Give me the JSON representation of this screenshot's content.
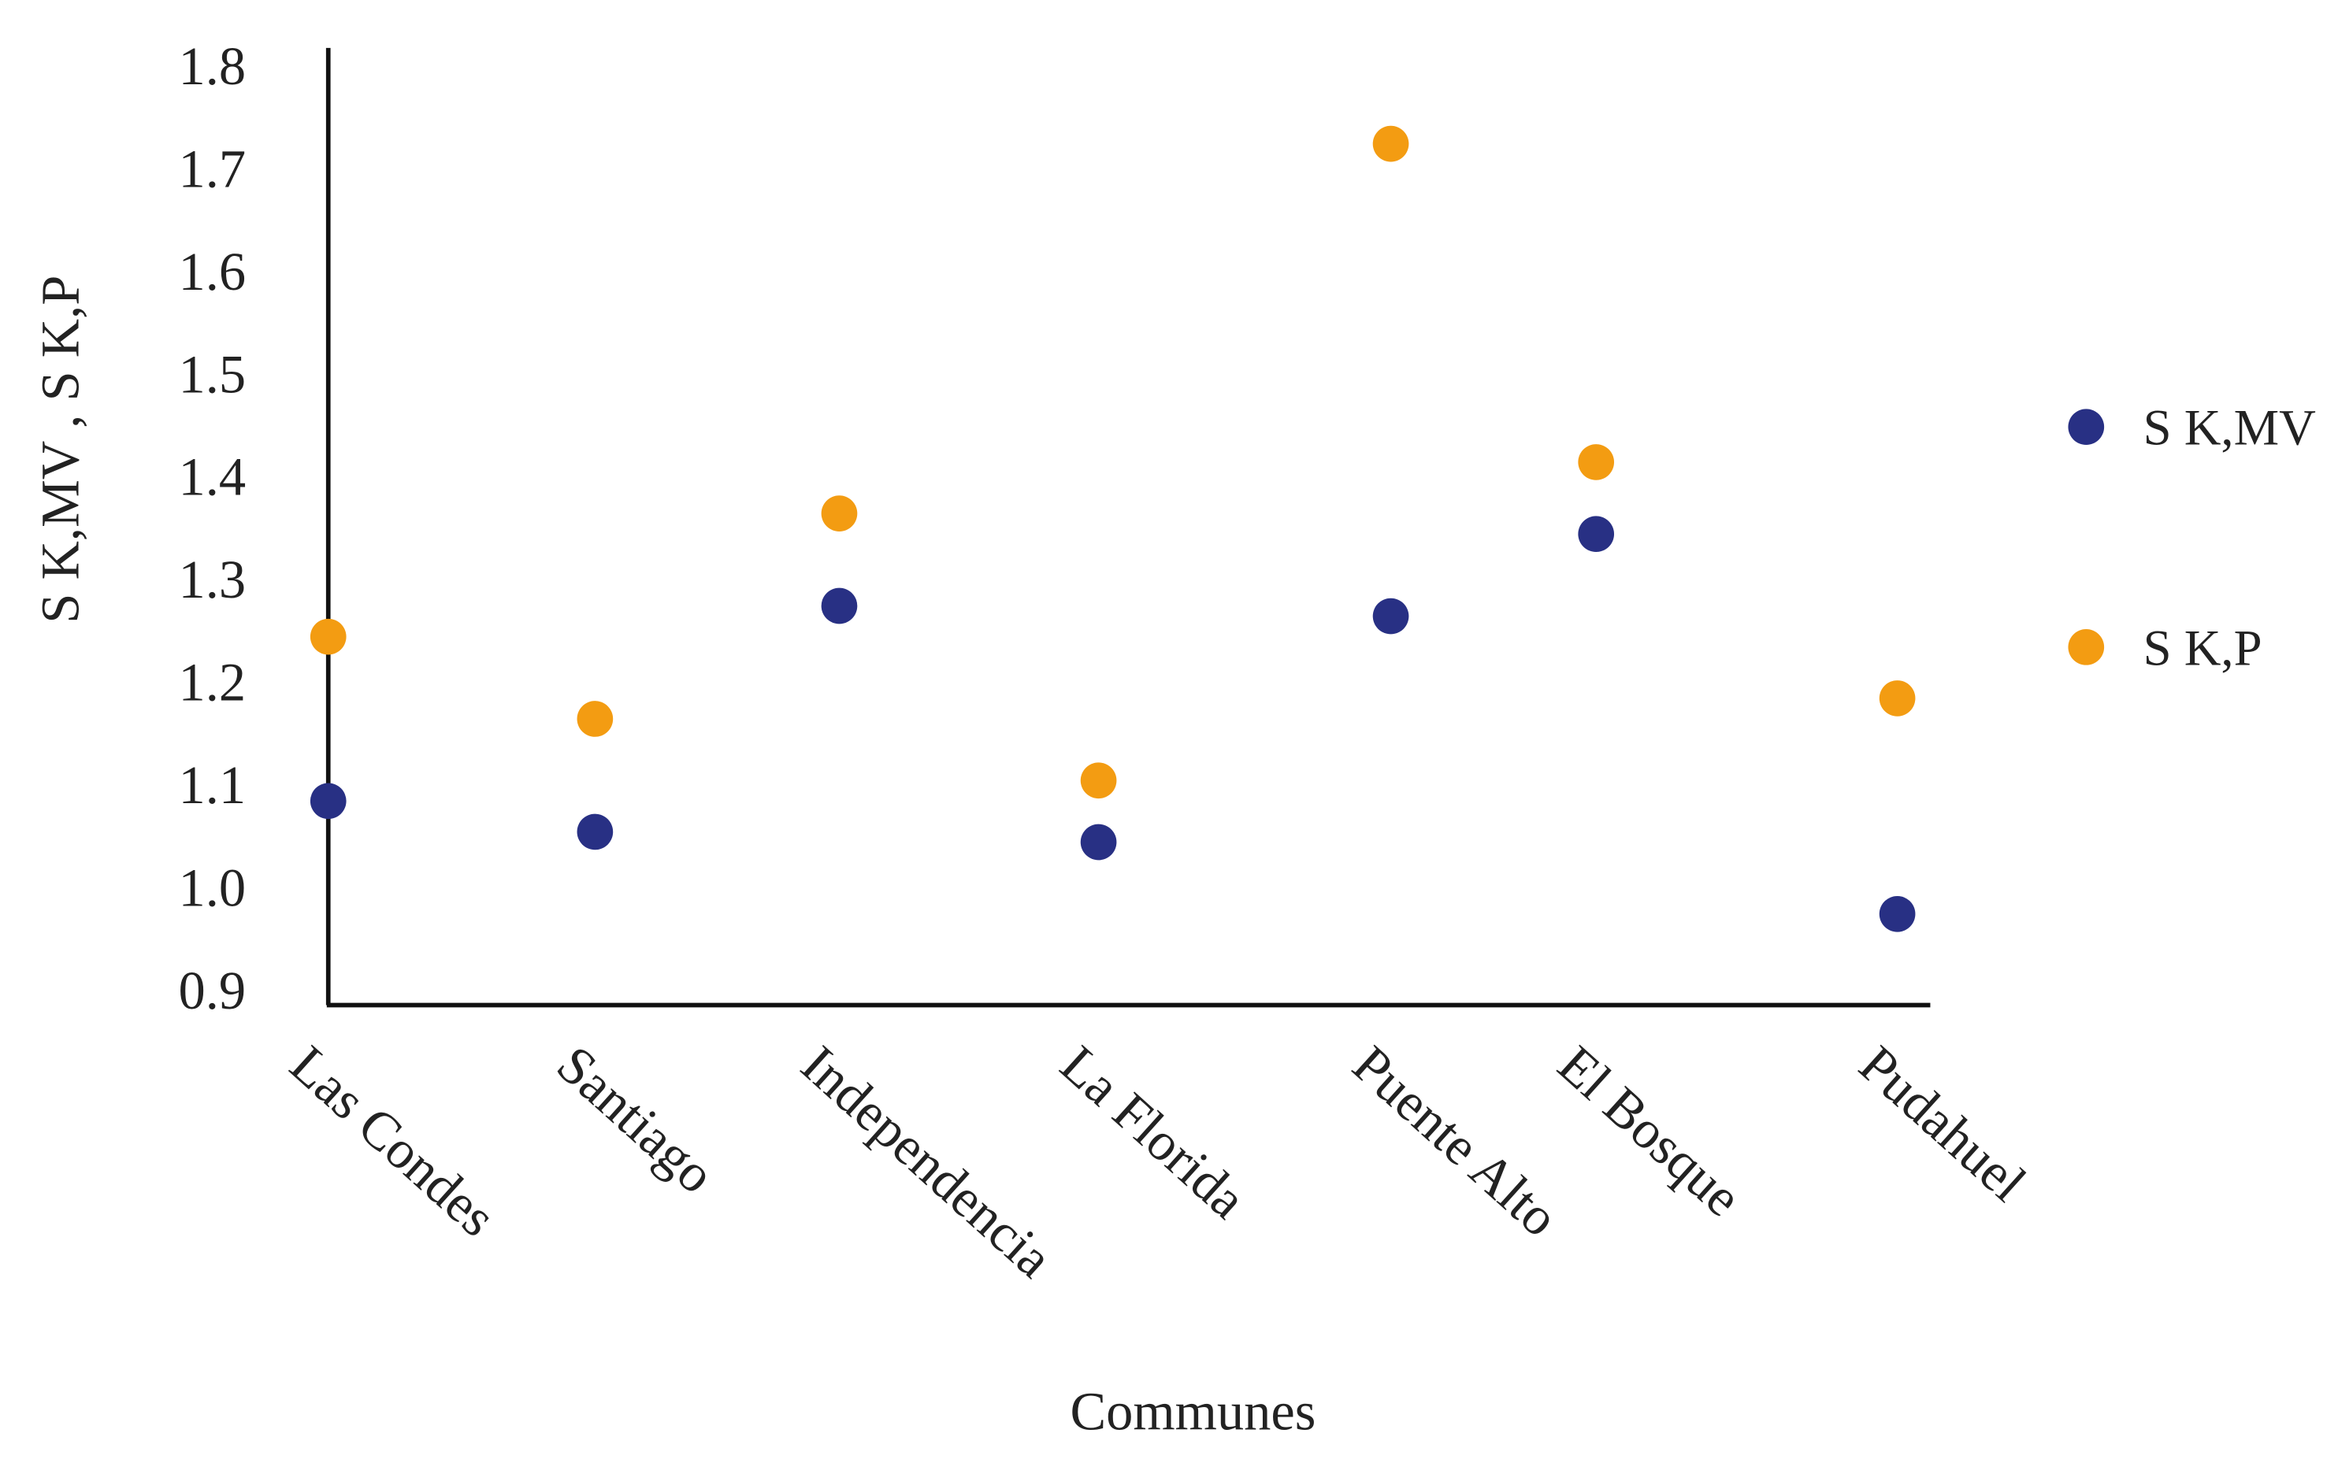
{
  "chart_data": {
    "type": "scatter",
    "x_label": "Communes",
    "y_label": "S K,MV , S K,P",
    "categories": [
      "Las Condes",
      "Santiago",
      "Independencia",
      "La Florida",
      "Puente Alto",
      "El Bosque",
      "Pudahuel"
    ],
    "series": [
      {
        "name": "S K,MV",
        "color": "#283084",
        "values": [
          1.09,
          1.06,
          1.28,
          1.05,
          1.27,
          1.35,
          0.98
        ]
      },
      {
        "name": "S K,P",
        "color": "#f39c12",
        "values": [
          1.25,
          1.17,
          1.37,
          1.11,
          1.73,
          1.42,
          1.19
        ]
      }
    ],
    "ylim": [
      0.9,
      1.8
    ],
    "yticks": [
      0.9,
      {
        "value": 1,
        "label": "1.0"
      },
      1.1,
      1.2,
      1.3,
      1.4,
      1.5,
      1.6,
      1.7,
      1.8
    ],
    "grid": false,
    "legend": "right"
  }
}
